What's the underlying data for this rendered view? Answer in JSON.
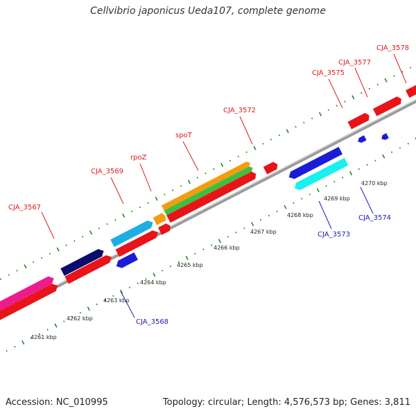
{
  "title": "Cellvibrio japonicus Ueda107, complete genome",
  "footer": {
    "accession": "Accession: NC_010995",
    "topology": "Topology: circular; Length: 4,576,573 bp; Genes: 3,811"
  },
  "colors": {
    "backbone": "#8c8c8c",
    "tick": "#1f8a1f",
    "label_forward": "#e0191b",
    "label_reverse": "#1a1ab8"
  },
  "kbp_labels": [
    "4261 kbp",
    "4262 kbp",
    "4263 kbp",
    "4264 kbp",
    "4265 kbp",
    "4266 kbp",
    "4267 kbp",
    "4268 kbp",
    "4269 kbp",
    "4270 kbp"
  ],
  "gene_labels_forward": [
    "CJA_3567",
    "CJA_3569",
    "rpoZ",
    "spoT",
    "CJA_3572",
    "CJA_3575",
    "CJA_3577",
    "CJA_3578"
  ],
  "gene_labels_reverse": [
    "CJA_3568",
    "CJA_3573",
    "CJA_3574"
  ]
}
